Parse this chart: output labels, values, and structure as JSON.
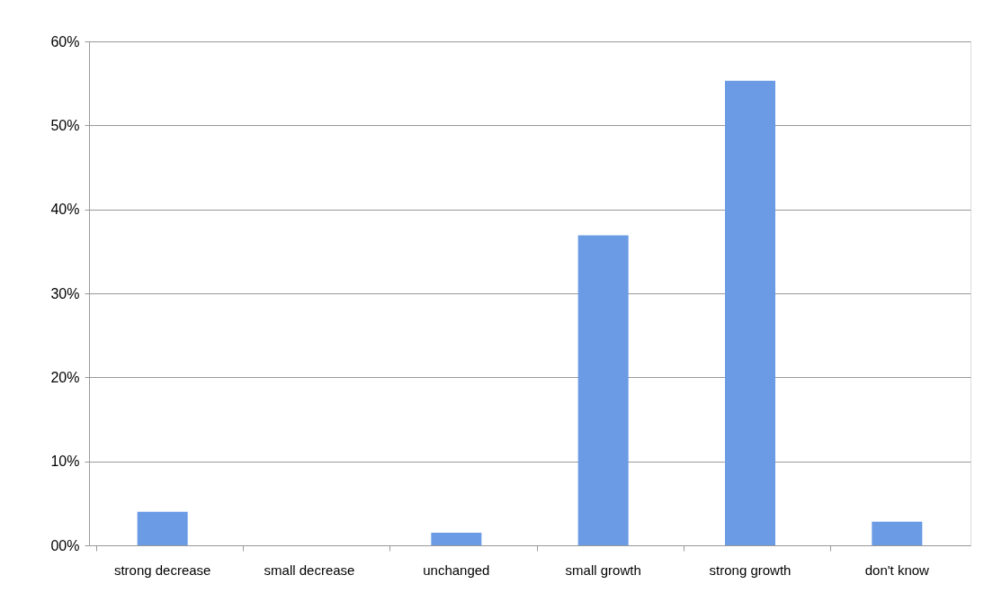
{
  "chart_data": {
    "type": "bar",
    "categories": [
      "strong decrease",
      "small decrease",
      "unchanged",
      "small growth",
      "strong growth",
      "don't know"
    ],
    "values": [
      4.0,
      0,
      1.5,
      36.9,
      55.3,
      2.8
    ],
    "color": "#6a9be4",
    "ylim": [
      0,
      60
    ],
    "yticks": [
      {
        "value": 0,
        "label": "00%"
      },
      {
        "value": 10,
        "label": "10%"
      },
      {
        "value": 20,
        "label": "20%"
      },
      {
        "value": 30,
        "label": "30%"
      },
      {
        "value": 40,
        "label": "40%"
      },
      {
        "value": 50,
        "label": "50%"
      },
      {
        "value": 60,
        "label": "60%"
      }
    ],
    "grid": "y"
  }
}
